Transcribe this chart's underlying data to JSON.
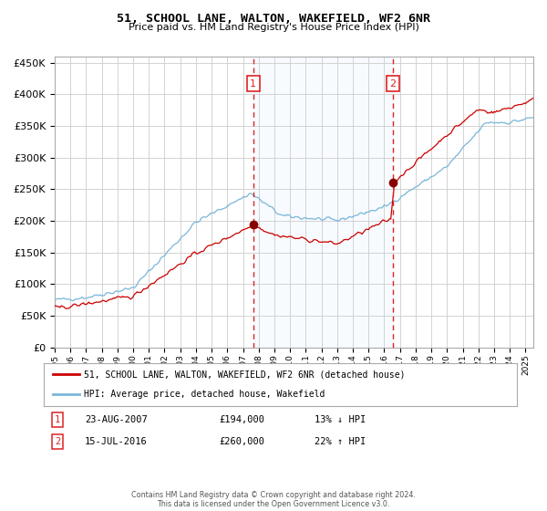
{
  "title": "51, SCHOOL LANE, WALTON, WAKEFIELD, WF2 6NR",
  "subtitle": "Price paid vs. HM Land Registry's House Price Index (HPI)",
  "footer": "Contains HM Land Registry data © Crown copyright and database right 2024.\nThis data is licensed under the Open Government Licence v3.0.",
  "legend_line1": "51, SCHOOL LANE, WALTON, WAKEFIELD, WF2 6NR (detached house)",
  "legend_line2": "HPI: Average price, detached house, Wakefield",
  "sale1_date": "23-AUG-2007",
  "sale1_price": 194000,
  "sale1_label": "13% ↓ HPI",
  "sale2_date": "15-JUL-2016",
  "sale2_price": 260000,
  "sale2_label": "22% ↑ HPI",
  "hpi_color": "#7ab6d8",
  "price_color": "#cc0000",
  "sale_dot_color": "#880000",
  "shading_color": "#ddeeff",
  "dashed_line_color": "#dd2222",
  "background_color": "#ffffff",
  "grid_color": "#cccccc",
  "ylim": [
    0,
    460000
  ],
  "yticks": [
    0,
    50000,
    100000,
    150000,
    200000,
    250000,
    300000,
    350000,
    400000,
    450000
  ],
  "sale1_year": 2007.64,
  "sale2_year": 2016.54,
  "xmin": 1995,
  "xmax": 2025.5
}
